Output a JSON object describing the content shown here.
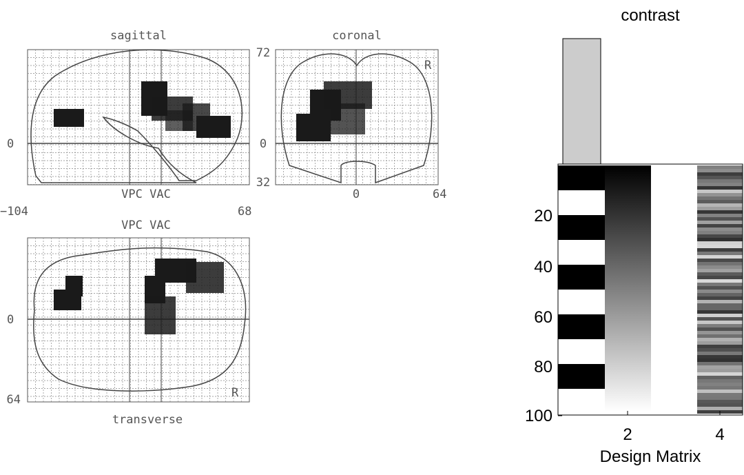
{
  "glass_brain": {
    "sagittal": {
      "title": "sagittal",
      "top": "72",
      "zero": "0",
      "axis_label": "VPC VAC",
      "left": "−104",
      "right": "68"
    },
    "coronal": {
      "title": "coronal",
      "top": "72",
      "zero": "0",
      "bottom": "32",
      "center": "0",
      "right": "64",
      "side": "R"
    },
    "transverse": {
      "title": "transverse",
      "axis_label": "VPC VAC",
      "zero": "0",
      "bottom": "64",
      "side": "R"
    }
  },
  "design": {
    "contrast_title": "contrast",
    "xlabel": "Design Matrix",
    "yticks": [
      "20",
      "40",
      "60",
      "80",
      "100"
    ],
    "xticks": [
      "2",
      "4"
    ]
  }
}
